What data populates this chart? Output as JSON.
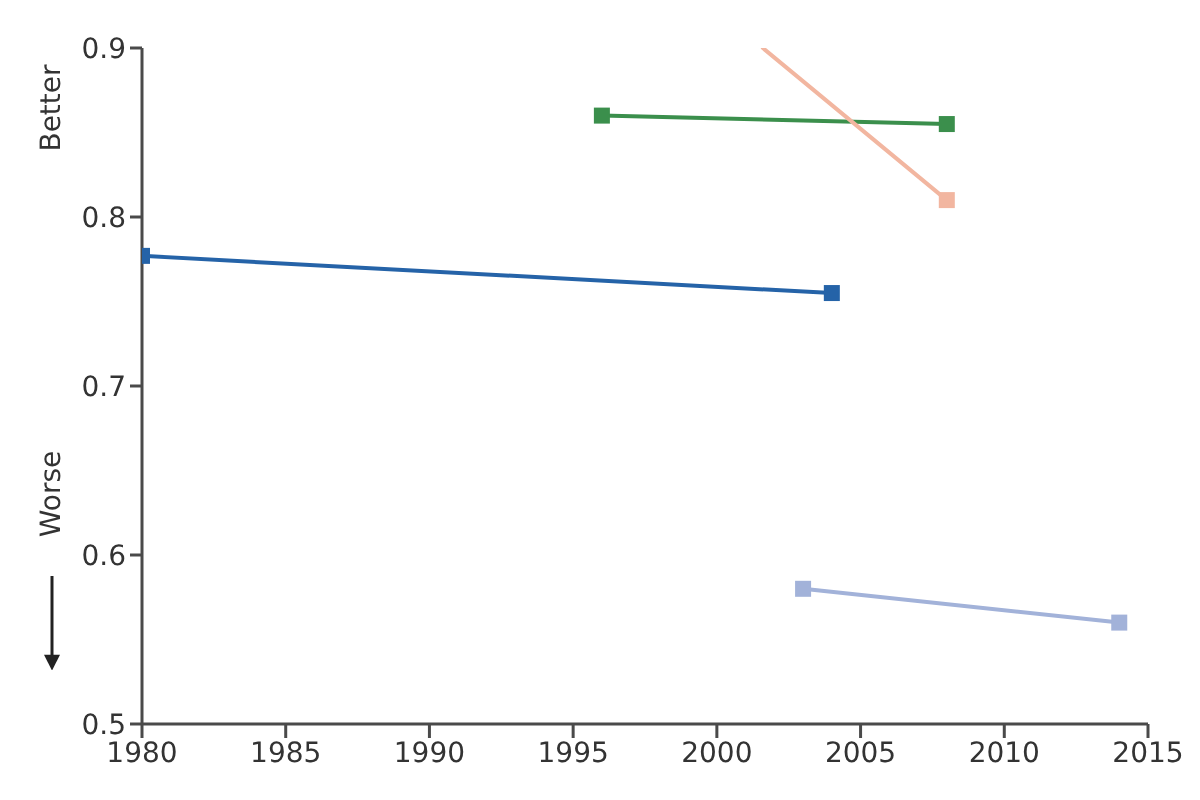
{
  "chart_data": {
    "type": "line",
    "series": [
      {
        "color": "#2563a8",
        "x": [
          1980,
          2004
        ],
        "values": [
          0.777,
          0.755
        ]
      },
      {
        "color": "#3b8f4c",
        "x": [
          1996,
          2008
        ],
        "values": [
          0.86,
          0.855
        ]
      },
      {
        "color": "#f2b6a0",
        "x": [
          2001.6,
          2008
        ],
        "values": [
          0.9,
          0.81
        ]
      },
      {
        "color": "#a2b2d9",
        "x": [
          2003,
          2014
        ],
        "values": [
          0.58,
          0.56
        ]
      }
    ],
    "xlim": [
      1980,
      2015
    ],
    "xticks": [
      1980,
      1985,
      1990,
      1995,
      2000,
      2005,
      2010,
      2015
    ],
    "ylim": [
      0.5,
      0.9
    ],
    "yticks": [
      0.5,
      0.6,
      0.7,
      0.8,
      0.9
    ],
    "marker": "square",
    "line_style": "solid",
    "annotations": [
      "Better",
      "Worse"
    ]
  }
}
